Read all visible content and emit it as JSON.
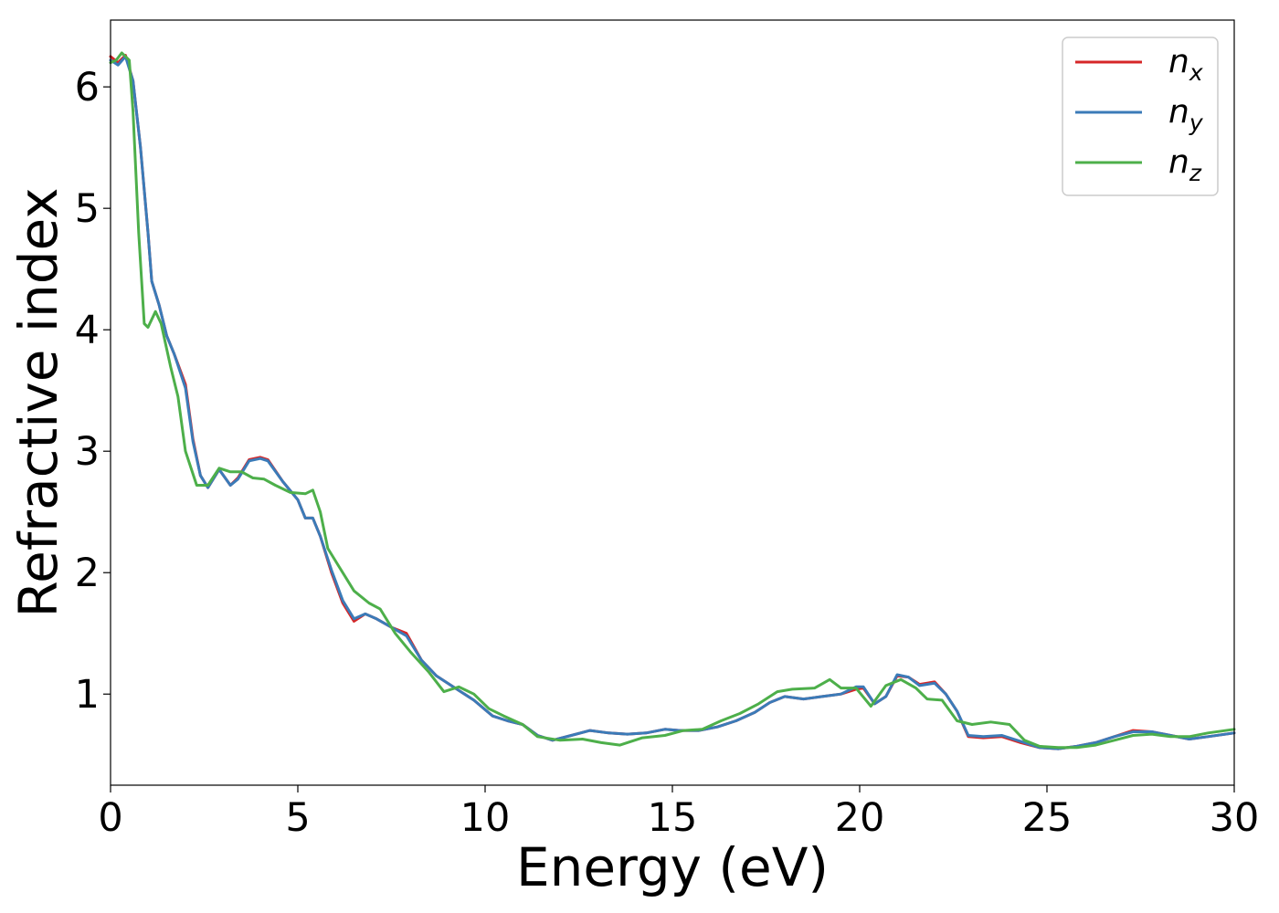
{
  "chart_data": {
    "type": "line",
    "title": "",
    "xlabel": "Energy (eV)",
    "ylabel": "Refractive index",
    "xlim": [
      0,
      30
    ],
    "ylim": [
      0.25,
      6.55
    ],
    "xticks": [
      0,
      5,
      10,
      15,
      20,
      25,
      30
    ],
    "yticks": [
      1,
      2,
      3,
      4,
      5,
      6
    ],
    "grid": false,
    "legend_position": "top-right",
    "series": [
      {
        "name": "n_x",
        "label_base": "n",
        "label_sub": "x",
        "color": "#d62728",
        "points": [
          [
            0,
            6.25
          ],
          [
            0.2,
            6.2
          ],
          [
            0.4,
            6.26
          ],
          [
            0.6,
            6.05
          ],
          [
            0.8,
            5.5
          ],
          [
            1.0,
            4.8
          ],
          [
            1.1,
            4.4
          ],
          [
            1.3,
            4.2
          ],
          [
            1.5,
            3.95
          ],
          [
            1.7,
            3.8
          ],
          [
            2.0,
            3.55
          ],
          [
            2.2,
            3.1
          ],
          [
            2.4,
            2.8
          ],
          [
            2.6,
            2.7
          ],
          [
            2.9,
            2.85
          ],
          [
            3.2,
            2.72
          ],
          [
            3.4,
            2.78
          ],
          [
            3.7,
            2.93
          ],
          [
            4.0,
            2.95
          ],
          [
            4.2,
            2.93
          ],
          [
            4.6,
            2.75
          ],
          [
            5.0,
            2.6
          ],
          [
            5.2,
            2.45
          ],
          [
            5.4,
            2.45
          ],
          [
            5.6,
            2.3
          ],
          [
            5.9,
            2.0
          ],
          [
            6.2,
            1.75
          ],
          [
            6.5,
            1.6
          ],
          [
            6.8,
            1.66
          ],
          [
            7.1,
            1.62
          ],
          [
            7.5,
            1.55
          ],
          [
            7.9,
            1.5
          ],
          [
            8.3,
            1.28
          ],
          [
            8.7,
            1.15
          ],
          [
            9.2,
            1.05
          ],
          [
            9.7,
            0.95
          ],
          [
            10.2,
            0.82
          ],
          [
            10.6,
            0.78
          ],
          [
            11.0,
            0.75
          ],
          [
            11.4,
            0.66
          ],
          [
            11.8,
            0.62
          ],
          [
            12.3,
            0.66
          ],
          [
            12.8,
            0.7
          ],
          [
            13.3,
            0.68
          ],
          [
            13.8,
            0.67
          ],
          [
            14.3,
            0.68
          ],
          [
            14.8,
            0.71
          ],
          [
            15.2,
            0.7
          ],
          [
            15.7,
            0.7
          ],
          [
            16.2,
            0.73
          ],
          [
            16.7,
            0.78
          ],
          [
            17.2,
            0.85
          ],
          [
            17.6,
            0.93
          ],
          [
            18.0,
            0.98
          ],
          [
            18.5,
            0.96
          ],
          [
            19.0,
            0.98
          ],
          [
            19.5,
            1.0
          ],
          [
            19.9,
            1.04
          ],
          [
            20.1,
            1.05
          ],
          [
            20.4,
            0.92
          ],
          [
            20.7,
            0.98
          ],
          [
            21.0,
            1.15
          ],
          [
            21.3,
            1.14
          ],
          [
            21.6,
            1.08
          ],
          [
            22.0,
            1.1
          ],
          [
            22.3,
            1.0
          ],
          [
            22.6,
            0.86
          ],
          [
            22.9,
            0.65
          ],
          [
            23.3,
            0.64
          ],
          [
            23.8,
            0.65
          ],
          [
            24.3,
            0.6
          ],
          [
            24.8,
            0.56
          ],
          [
            25.3,
            0.55
          ],
          [
            25.8,
            0.57
          ],
          [
            26.3,
            0.6
          ],
          [
            26.8,
            0.65
          ],
          [
            27.3,
            0.7
          ],
          [
            27.8,
            0.69
          ],
          [
            28.3,
            0.66
          ],
          [
            28.8,
            0.63
          ],
          [
            29.3,
            0.65
          ],
          [
            30.0,
            0.68
          ]
        ]
      },
      {
        "name": "n_y",
        "label_base": "n",
        "label_sub": "y",
        "color": "#3b7bb8",
        "points": [
          [
            0,
            6.22
          ],
          [
            0.2,
            6.18
          ],
          [
            0.4,
            6.25
          ],
          [
            0.6,
            6.05
          ],
          [
            0.8,
            5.5
          ],
          [
            1.0,
            4.8
          ],
          [
            1.1,
            4.4
          ],
          [
            1.3,
            4.2
          ],
          [
            1.5,
            3.95
          ],
          [
            1.7,
            3.8
          ],
          [
            2.0,
            3.52
          ],
          [
            2.2,
            3.08
          ],
          [
            2.4,
            2.8
          ],
          [
            2.6,
            2.7
          ],
          [
            2.9,
            2.85
          ],
          [
            3.2,
            2.72
          ],
          [
            3.4,
            2.77
          ],
          [
            3.7,
            2.92
          ],
          [
            4.0,
            2.94
          ],
          [
            4.2,
            2.92
          ],
          [
            4.6,
            2.75
          ],
          [
            5.0,
            2.6
          ],
          [
            5.2,
            2.45
          ],
          [
            5.4,
            2.45
          ],
          [
            5.6,
            2.3
          ],
          [
            5.9,
            2.02
          ],
          [
            6.2,
            1.77
          ],
          [
            6.5,
            1.62
          ],
          [
            6.8,
            1.66
          ],
          [
            7.1,
            1.62
          ],
          [
            7.5,
            1.55
          ],
          [
            7.9,
            1.48
          ],
          [
            8.3,
            1.28
          ],
          [
            8.7,
            1.15
          ],
          [
            9.2,
            1.05
          ],
          [
            9.7,
            0.95
          ],
          [
            10.2,
            0.82
          ],
          [
            10.6,
            0.78
          ],
          [
            11.0,
            0.75
          ],
          [
            11.4,
            0.66
          ],
          [
            11.8,
            0.62
          ],
          [
            12.3,
            0.66
          ],
          [
            12.8,
            0.7
          ],
          [
            13.3,
            0.68
          ],
          [
            13.8,
            0.67
          ],
          [
            14.3,
            0.68
          ],
          [
            14.8,
            0.71
          ],
          [
            15.2,
            0.7
          ],
          [
            15.7,
            0.7
          ],
          [
            16.2,
            0.73
          ],
          [
            16.7,
            0.78
          ],
          [
            17.2,
            0.85
          ],
          [
            17.6,
            0.93
          ],
          [
            18.0,
            0.98
          ],
          [
            18.5,
            0.96
          ],
          [
            19.0,
            0.98
          ],
          [
            19.5,
            1.0
          ],
          [
            19.9,
            1.06
          ],
          [
            20.1,
            1.06
          ],
          [
            20.4,
            0.92
          ],
          [
            20.7,
            0.98
          ],
          [
            21.0,
            1.16
          ],
          [
            21.3,
            1.14
          ],
          [
            21.6,
            1.07
          ],
          [
            22.0,
            1.09
          ],
          [
            22.3,
            1.0
          ],
          [
            22.6,
            0.86
          ],
          [
            22.9,
            0.66
          ],
          [
            23.3,
            0.65
          ],
          [
            23.8,
            0.66
          ],
          [
            24.3,
            0.61
          ],
          [
            24.8,
            0.56
          ],
          [
            25.3,
            0.55
          ],
          [
            25.8,
            0.57
          ],
          [
            26.3,
            0.6
          ],
          [
            26.8,
            0.65
          ],
          [
            27.3,
            0.69
          ],
          [
            27.8,
            0.69
          ],
          [
            28.3,
            0.66
          ],
          [
            28.8,
            0.63
          ],
          [
            29.3,
            0.65
          ],
          [
            30.0,
            0.68
          ]
        ]
      },
      {
        "name": "n_z",
        "label_base": "n",
        "label_sub": "z",
        "color": "#4daf4a",
        "points": [
          [
            0,
            6.2
          ],
          [
            0.15,
            6.22
          ],
          [
            0.3,
            6.28
          ],
          [
            0.5,
            6.22
          ],
          [
            0.6,
            5.8
          ],
          [
            0.75,
            4.8
          ],
          [
            0.9,
            4.05
          ],
          [
            1.0,
            4.02
          ],
          [
            1.2,
            4.15
          ],
          [
            1.35,
            4.05
          ],
          [
            1.6,
            3.7
          ],
          [
            1.8,
            3.45
          ],
          [
            2.0,
            3.0
          ],
          [
            2.3,
            2.72
          ],
          [
            2.6,
            2.72
          ],
          [
            2.9,
            2.86
          ],
          [
            3.2,
            2.83
          ],
          [
            3.5,
            2.83
          ],
          [
            3.8,
            2.78
          ],
          [
            4.1,
            2.77
          ],
          [
            4.4,
            2.72
          ],
          [
            4.8,
            2.66
          ],
          [
            5.2,
            2.65
          ],
          [
            5.4,
            2.68
          ],
          [
            5.6,
            2.5
          ],
          [
            5.8,
            2.2
          ],
          [
            6.1,
            2.05
          ],
          [
            6.5,
            1.85
          ],
          [
            6.9,
            1.75
          ],
          [
            7.2,
            1.7
          ],
          [
            7.6,
            1.5
          ],
          [
            8.0,
            1.35
          ],
          [
            8.5,
            1.18
          ],
          [
            8.9,
            1.02
          ],
          [
            9.3,
            1.06
          ],
          [
            9.7,
            1.0
          ],
          [
            10.1,
            0.88
          ],
          [
            10.5,
            0.82
          ],
          [
            11.0,
            0.75
          ],
          [
            11.4,
            0.65
          ],
          [
            12.0,
            0.62
          ],
          [
            12.6,
            0.63
          ],
          [
            13.1,
            0.6
          ],
          [
            13.6,
            0.58
          ],
          [
            14.2,
            0.64
          ],
          [
            14.8,
            0.66
          ],
          [
            15.3,
            0.7
          ],
          [
            15.8,
            0.71
          ],
          [
            16.3,
            0.78
          ],
          [
            16.8,
            0.84
          ],
          [
            17.3,
            0.92
          ],
          [
            17.8,
            1.02
          ],
          [
            18.2,
            1.04
          ],
          [
            18.8,
            1.05
          ],
          [
            19.2,
            1.12
          ],
          [
            19.5,
            1.05
          ],
          [
            19.9,
            1.05
          ],
          [
            20.3,
            0.9
          ],
          [
            20.7,
            1.07
          ],
          [
            21.1,
            1.12
          ],
          [
            21.5,
            1.05
          ],
          [
            21.8,
            0.96
          ],
          [
            22.2,
            0.95
          ],
          [
            22.6,
            0.78
          ],
          [
            23.0,
            0.75
          ],
          [
            23.5,
            0.77
          ],
          [
            24.0,
            0.75
          ],
          [
            24.4,
            0.62
          ],
          [
            24.8,
            0.57
          ],
          [
            25.3,
            0.56
          ],
          [
            25.8,
            0.56
          ],
          [
            26.3,
            0.58
          ],
          [
            26.8,
            0.62
          ],
          [
            27.3,
            0.66
          ],
          [
            27.8,
            0.67
          ],
          [
            28.3,
            0.65
          ],
          [
            28.8,
            0.65
          ],
          [
            29.3,
            0.68
          ],
          [
            30.0,
            0.71
          ]
        ]
      }
    ]
  }
}
